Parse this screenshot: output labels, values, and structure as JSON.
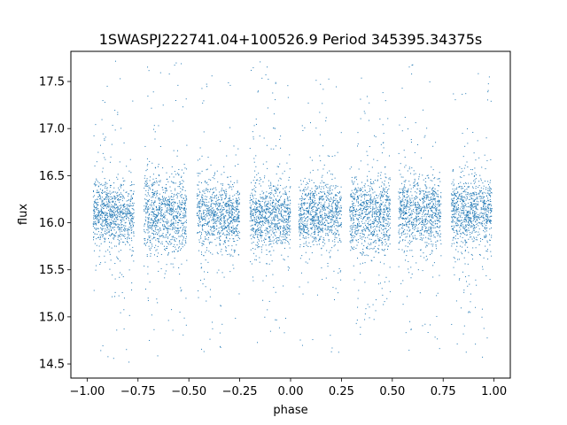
{
  "chart_data": {
    "type": "scatter",
    "title": "1SWASPJ222741.04+100526.9 Period 345395.34375s",
    "xlabel": "phase",
    "ylabel": "flux",
    "xlim": [
      -1.08,
      1.08
    ],
    "ylim": [
      14.35,
      17.82
    ],
    "xticks": [
      -1.0,
      -0.75,
      -0.5,
      -0.25,
      0.0,
      0.25,
      0.5,
      0.75,
      1.0
    ],
    "xtick_labels": [
      "−1.00",
      "−0.75",
      "−0.50",
      "−0.25",
      "0.00",
      "0.25",
      "0.50",
      "0.75",
      "1.00"
    ],
    "yticks": [
      14.5,
      15.0,
      15.5,
      16.0,
      16.5,
      17.0,
      17.5
    ],
    "ytick_labels": [
      "14.5",
      "15.0",
      "15.5",
      "16.0",
      "16.5",
      "17.0",
      "17.5"
    ],
    "grid": false,
    "marker_color": "#1f77b4",
    "clusters": [
      {
        "x_range": [
          -0.97,
          -0.77
        ],
        "y_center": 16.1,
        "y_core_spread": 0.17,
        "y_range": [
          14.5,
          17.72
        ]
      },
      {
        "x_range": [
          -0.72,
          -0.51
        ],
        "y_center": 16.1,
        "y_core_spread": 0.2,
        "y_range": [
          14.5,
          17.72
        ]
      },
      {
        "x_range": [
          -0.46,
          -0.25
        ],
        "y_center": 16.08,
        "y_core_spread": 0.17,
        "y_range": [
          14.55,
          17.7
        ]
      },
      {
        "x_range": [
          -0.2,
          0.0
        ],
        "y_center": 16.08,
        "y_core_spread": 0.17,
        "y_range": [
          14.7,
          17.72
        ]
      },
      {
        "x_range": [
          0.04,
          0.25
        ],
        "y_center": 16.08,
        "y_core_spread": 0.17,
        "y_range": [
          14.6,
          17.62
        ]
      },
      {
        "x_range": [
          0.29,
          0.49
        ],
        "y_center": 16.08,
        "y_core_spread": 0.2,
        "y_range": [
          14.5,
          17.7
        ]
      },
      {
        "x_range": [
          0.53,
          0.74
        ],
        "y_center": 16.1,
        "y_core_spread": 0.18,
        "y_range": [
          14.6,
          17.7
        ]
      },
      {
        "x_range": [
          0.79,
          0.99
        ],
        "y_center": 16.12,
        "y_core_spread": 0.18,
        "y_range": [
          14.5,
          17.72
        ]
      }
    ]
  }
}
